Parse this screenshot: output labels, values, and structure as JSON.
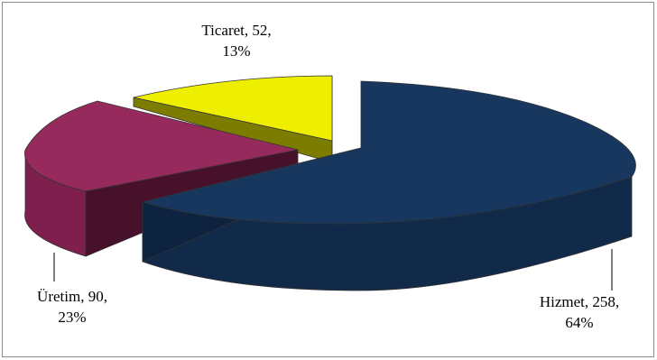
{
  "chart_data": {
    "type": "pie",
    "style": "3d-exploded",
    "slices": [
      {
        "category": "Hizmet",
        "value": 258,
        "percent": "64%",
        "color": "#17375e",
        "label_line1": "Hizmet, 258,",
        "label_line2": "64%"
      },
      {
        "category": "Üretim",
        "value": 90,
        "percent": "23%",
        "color": "#7f1f4d",
        "label_line1": "Üretim, 90,",
        "label_line2": "23%"
      },
      {
        "category": "Ticaret",
        "value": 52,
        "percent": "13%",
        "color": "#eeee00",
        "label_line1": "Ticaret, 52,",
        "label_line2": "13%"
      }
    ]
  }
}
